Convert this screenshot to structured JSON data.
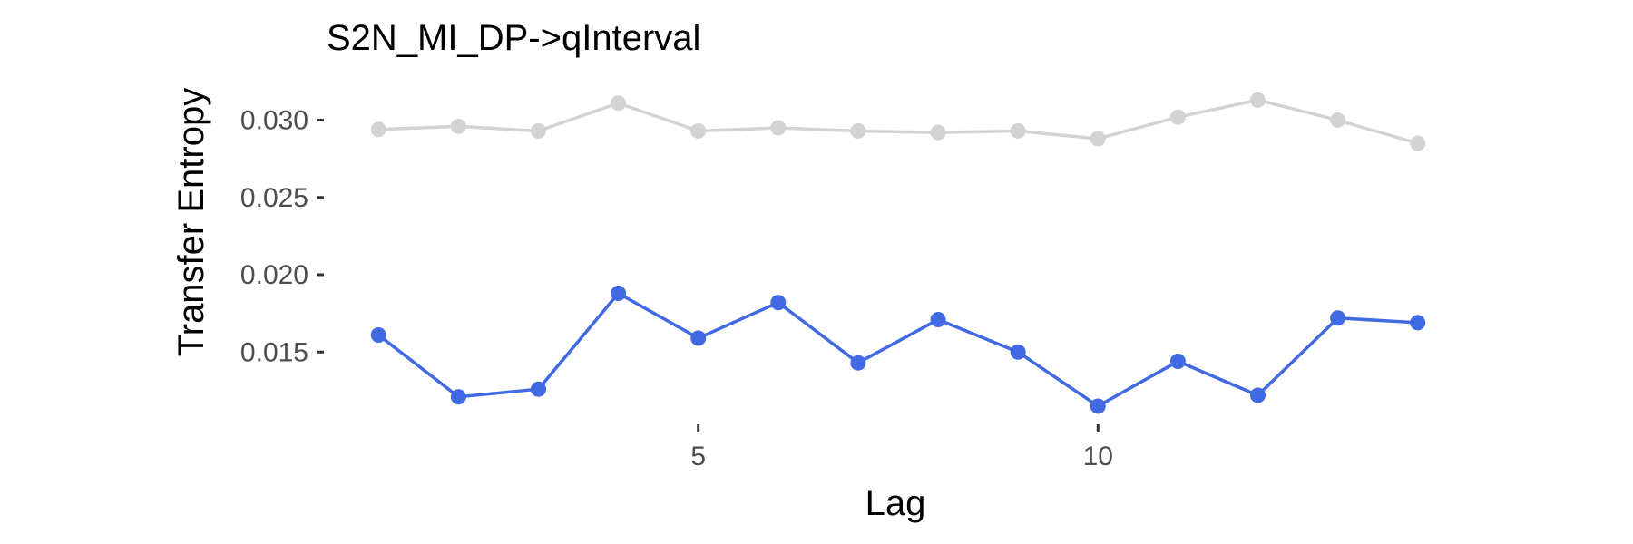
{
  "chart_data": {
    "type": "line",
    "title": "S2N_MI_DP->qInterval",
    "xlabel": "Lag",
    "ylabel": "Transfer Entropy",
    "x": [
      1,
      2,
      3,
      4,
      5,
      6,
      7,
      8,
      9,
      10,
      11,
      12,
      13,
      14
    ],
    "xticks": [
      5,
      10
    ],
    "xtick_labels": [
      "5",
      "10"
    ],
    "yticks": [
      0.015,
      0.02,
      0.025,
      0.03
    ],
    "ytick_labels": [
      "0.015",
      "0.020",
      "0.025",
      "0.030"
    ],
    "xlim": [
      0.35,
      14.65
    ],
    "ylim": [
      0.0105,
      0.0322
    ],
    "grid": false,
    "series": [
      {
        "color": "#d3d3d3",
        "values": [
          0.0294,
          0.0296,
          0.0293,
          0.0311,
          0.0293,
          0.0295,
          0.0293,
          0.0292,
          0.0293,
          0.0288,
          0.0302,
          0.0313,
          0.03,
          0.0285
        ]
      },
      {
        "color": "#4169e1",
        "values": [
          0.0161,
          0.0121,
          0.0126,
          0.0188,
          0.0159,
          0.0182,
          0.0143,
          0.0171,
          0.015,
          0.0115,
          0.0144,
          0.0122,
          0.0172,
          0.0169
        ]
      }
    ]
  }
}
